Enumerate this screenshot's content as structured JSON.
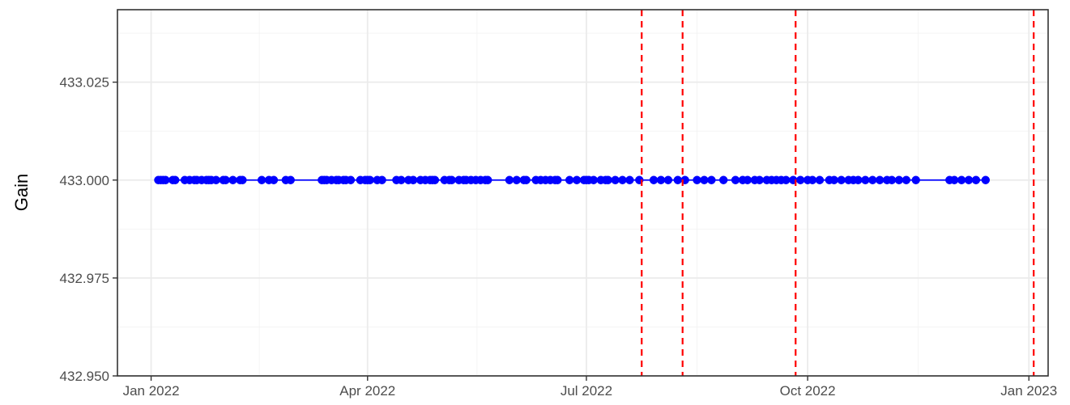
{
  "chart_data": {
    "type": "scatter",
    "title": "",
    "xlabel": "",
    "ylabel": "Gain",
    "x_ticks": [
      "Jan 2022",
      "Apr 2022",
      "Jul 2022",
      "Oct 2022",
      "Jan 2023"
    ],
    "x_tick_dates": [
      "2022-01-01",
      "2022-04-01",
      "2022-07-01",
      "2022-10-01",
      "2023-01-01"
    ],
    "y_ticks": [
      "432.950",
      "432.975",
      "433.000",
      "433.025"
    ],
    "ylim": [
      432.95,
      433.0435
    ],
    "xlim": [
      "2021-12-18",
      "2023-01-09"
    ],
    "grid": true,
    "legend": "none",
    "series": [
      {
        "color": "#0000ff",
        "connect_line": true,
        "x": [
          "2022-01-04",
          "2022-01-05",
          "2022-01-06",
          "2022-01-07",
          "2022-01-10",
          "2022-01-11",
          "2022-01-15",
          "2022-01-17",
          "2022-01-19",
          "2022-01-20",
          "2022-01-22",
          "2022-01-24",
          "2022-01-25",
          "2022-01-26",
          "2022-01-28",
          "2022-01-31",
          "2022-02-01",
          "2022-02-04",
          "2022-02-07",
          "2022-02-08",
          "2022-02-16",
          "2022-02-19",
          "2022-02-21",
          "2022-02-26",
          "2022-02-28",
          "2022-03-13",
          "2022-03-14",
          "2022-03-15",
          "2022-03-17",
          "2022-03-19",
          "2022-03-20",
          "2022-03-22",
          "2022-03-23",
          "2022-03-25",
          "2022-03-29",
          "2022-03-31",
          "2022-04-01",
          "2022-04-02",
          "2022-04-05",
          "2022-04-07",
          "2022-04-13",
          "2022-04-15",
          "2022-04-18",
          "2022-04-20",
          "2022-04-23",
          "2022-04-25",
          "2022-04-27",
          "2022-04-28",
          "2022-04-29",
          "2022-05-03",
          "2022-05-05",
          "2022-05-06",
          "2022-05-09",
          "2022-05-11",
          "2022-05-12",
          "2022-05-14",
          "2022-05-16",
          "2022-05-18",
          "2022-05-20",
          "2022-05-21",
          "2022-05-30",
          "2022-06-02",
          "2022-06-05",
          "2022-06-06",
          "2022-06-10",
          "2022-06-12",
          "2022-06-14",
          "2022-06-16",
          "2022-06-18",
          "2022-06-19",
          "2022-06-24",
          "2022-06-27",
          "2022-06-30",
          "2022-07-01",
          "2022-07-02",
          "2022-07-04",
          "2022-07-07",
          "2022-07-09",
          "2022-07-10",
          "2022-07-13",
          "2022-07-16",
          "2022-07-19",
          "2022-07-23",
          "2022-07-29",
          "2022-08-01",
          "2022-08-04",
          "2022-08-08",
          "2022-08-11",
          "2022-08-16",
          "2022-08-19",
          "2022-08-22",
          "2022-08-27",
          "2022-09-01",
          "2022-09-04",
          "2022-09-06",
          "2022-09-09",
          "2022-09-11",
          "2022-09-14",
          "2022-09-16",
          "2022-09-18",
          "2022-09-20",
          "2022-09-22",
          "2022-09-25",
          "2022-09-28",
          "2022-10-01",
          "2022-10-03",
          "2022-10-06",
          "2022-10-10",
          "2022-10-12",
          "2022-10-15",
          "2022-10-18",
          "2022-10-20",
          "2022-10-22",
          "2022-10-25",
          "2022-10-28",
          "2022-10-31",
          "2022-11-03",
          "2022-11-05",
          "2022-11-08",
          "2022-11-11",
          "2022-11-15",
          "2022-11-29",
          "2022-12-01",
          "2022-12-04",
          "2022-12-07",
          "2022-12-10",
          "2022-12-14"
        ],
        "y": [
          433,
          433,
          433,
          433,
          433,
          433,
          433,
          433,
          433,
          433,
          433,
          433,
          433,
          433,
          433,
          433,
          433,
          433,
          433,
          433,
          433,
          433,
          433,
          433,
          433,
          433,
          433,
          433,
          433,
          433,
          433,
          433,
          433,
          433,
          433,
          433,
          433,
          433,
          433,
          433,
          433,
          433,
          433,
          433,
          433,
          433,
          433,
          433,
          433,
          433,
          433,
          433,
          433,
          433,
          433,
          433,
          433,
          433,
          433,
          433,
          433,
          433,
          433,
          433,
          433,
          433,
          433,
          433,
          433,
          433,
          433,
          433,
          433,
          433,
          433,
          433,
          433,
          433,
          433,
          433,
          433,
          433,
          433,
          433,
          433,
          433,
          433,
          433,
          433,
          433,
          433,
          433,
          433,
          433,
          433,
          433,
          433,
          433,
          433,
          433,
          433,
          433,
          433,
          433,
          433,
          433,
          433,
          433,
          433,
          433,
          433,
          433,
          433,
          433,
          433,
          433,
          433,
          433,
          433,
          433,
          433,
          433,
          433,
          433,
          433,
          433,
          433
        ]
      }
    ],
    "vlines": {
      "color": "#ff0000",
      "style": "dashed",
      "x": [
        "2022-07-24",
        "2022-08-10",
        "2022-09-26",
        "2023-01-03"
      ]
    }
  }
}
